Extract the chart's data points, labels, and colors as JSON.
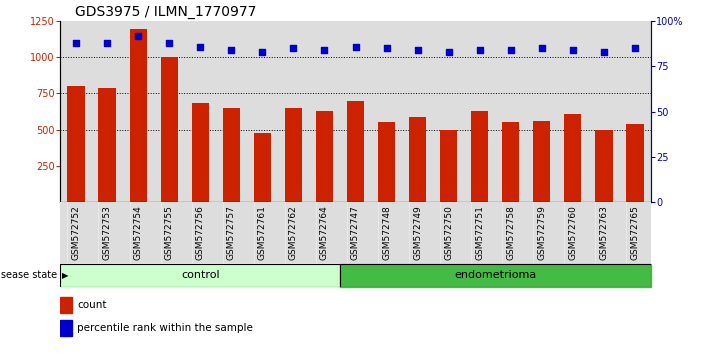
{
  "title": "GDS3975 / ILMN_1770977",
  "samples": [
    "GSM572752",
    "GSM572753",
    "GSM572754",
    "GSM572755",
    "GSM572756",
    "GSM572757",
    "GSM572761",
    "GSM572762",
    "GSM572764",
    "GSM572747",
    "GSM572748",
    "GSM572749",
    "GSM572750",
    "GSM572751",
    "GSM572758",
    "GSM572759",
    "GSM572760",
    "GSM572763",
    "GSM572765"
  ],
  "counts": [
    800,
    785,
    1195,
    1000,
    685,
    650,
    475,
    650,
    630,
    700,
    555,
    585,
    500,
    630,
    555,
    560,
    605,
    495,
    540
  ],
  "percentiles": [
    88,
    88,
    92,
    88,
    86,
    84,
    83,
    85,
    84,
    86,
    85,
    84,
    83,
    84,
    84,
    85,
    84,
    83,
    85
  ],
  "ctrl_count": 9,
  "endo_count": 10,
  "bar_color": "#CC2200",
  "dot_color": "#0000CC",
  "control_color": "#CCFFCC",
  "endometrioma_color": "#44BB44",
  "plot_bg_color": "#DDDDDD",
  "ylim_left": [
    0,
    1250
  ],
  "ylim_right": [
    0,
    100
  ],
  "yticks_left": [
    250,
    500,
    750,
    1000,
    1250
  ],
  "yticks_right": [
    0,
    25,
    50,
    75,
    100
  ],
  "grid_values": [
    500,
    750,
    1000
  ],
  "disease_state_label": "disease state",
  "legend_count": "count",
  "legend_percentile": "percentile rank within the sample",
  "title_fontsize": 10,
  "tick_fontsize": 6.5,
  "group_fontsize": 8,
  "legend_fontsize": 7.5
}
